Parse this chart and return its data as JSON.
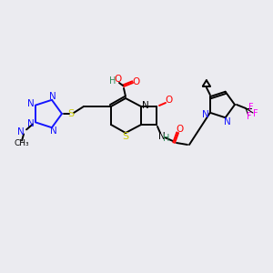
{
  "bg_color": "#ebebf0",
  "fig_size": [
    3.0,
    3.0
  ],
  "dpi": 100,
  "atom_colors": {
    "N": "#1414ff",
    "O": "#ff0000",
    "S": "#cccc00",
    "H": "#2e8b57",
    "F": "#ff00ff",
    "C": "#000000"
  },
  "lw": 1.4
}
